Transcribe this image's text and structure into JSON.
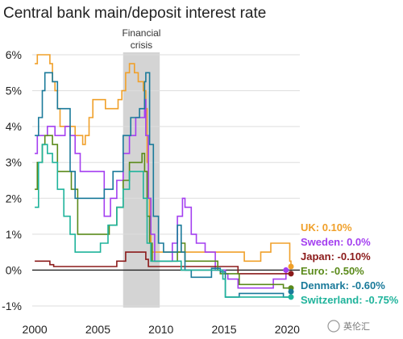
{
  "chart_data": {
    "type": "line",
    "title": "Central bank main/deposit interest rate",
    "xlabel": "",
    "ylabel": "",
    "xlim": [
      1999.8,
      2021.0
    ],
    "ylim": [
      -1.0,
      6.0
    ],
    "x_ticks": [
      2000,
      2005,
      2010,
      2015,
      2020
    ],
    "x_tick_labels": [
      "2000",
      "2005",
      "2010",
      "2015",
      "2020"
    ],
    "y_ticks": [
      -1,
      0,
      1,
      2,
      3,
      4,
      5,
      6
    ],
    "y_tick_labels": [
      "-1%",
      "0%",
      "1%",
      "2%",
      "3%",
      "4%",
      "5%",
      "6%"
    ],
    "grid": "horizontal",
    "shaded_band": {
      "label_lines": [
        "Financial",
        "crisis"
      ],
      "x_start": 2007.0,
      "x_end": 2009.9
    },
    "series": [
      {
        "name": "UK",
        "label": "UK: 0.10%",
        "color": "#f0a02a",
        "x": [
          2000.0,
          2000.2,
          2001.0,
          2001.2,
          2001.4,
          2001.6,
          2001.8,
          2002.0,
          2003.0,
          2003.2,
          2003.8,
          2004.0,
          2004.3,
          2004.6,
          2005.6,
          2006.6,
          2006.9,
          2007.2,
          2007.5,
          2007.9,
          2008.2,
          2008.6,
          2008.8,
          2008.9,
          2009.0,
          2009.1,
          2009.2,
          2016.6,
          2017.9,
          2018.7,
          2020.2,
          2020.3
        ],
        "y": [
          5.75,
          6.0,
          6.0,
          5.75,
          5.25,
          5.0,
          4.5,
          4.0,
          4.0,
          3.75,
          3.5,
          3.75,
          4.25,
          4.75,
          4.5,
          4.75,
          5.0,
          5.5,
          5.75,
          5.5,
          5.25,
          5.0,
          4.5,
          3.0,
          2.0,
          1.5,
          0.5,
          0.25,
          0.5,
          0.75,
          0.25,
          0.1
        ]
      },
      {
        "name": "Sweden",
        "label": "Sweden: 0.0%",
        "color": "#a43ff0",
        "x": [
          2000.0,
          2000.2,
          2000.6,
          2001.0,
          2001.2,
          2001.6,
          2002.0,
          2002.4,
          2002.8,
          2003.2,
          2003.6,
          2005.5,
          2006.0,
          2006.5,
          2007.0,
          2007.5,
          2008.0,
          2008.7,
          2008.8,
          2009.0,
          2009.2,
          2009.5,
          2010.5,
          2010.9,
          2011.3,
          2011.7,
          2011.9,
          2012.4,
          2012.8,
          2013.5,
          2014.3,
          2014.6,
          2015.1,
          2015.3,
          2016.1,
          2018.9,
          2019.9
        ],
        "y": [
          3.25,
          3.75,
          3.75,
          4.0,
          4.0,
          3.75,
          3.75,
          4.0,
          3.75,
          3.25,
          2.75,
          1.5,
          2.0,
          2.5,
          3.25,
          3.75,
          4.25,
          4.75,
          3.75,
          2.0,
          1.0,
          0.25,
          0.25,
          0.75,
          1.5,
          2.0,
          1.75,
          1.0,
          0.75,
          0.5,
          0.0,
          0.0,
          -0.1,
          -0.25,
          -0.5,
          -0.25,
          0.0
        ]
      },
      {
        "name": "Japan",
        "label": "Japan: -0.10%",
        "color": "#8b1a1a",
        "x": [
          2000.0,
          2000.6,
          2001.2,
          2001.5,
          2006.5,
          2007.2,
          2008.8,
          2009.0,
          2016.1,
          2020.3
        ],
        "y": [
          0.25,
          0.25,
          0.15,
          0.1,
          0.25,
          0.5,
          0.3,
          0.1,
          -0.1,
          -0.1
        ]
      },
      {
        "name": "Euro",
        "label": "Euro: -0.50%",
        "color": "#5a8a1a",
        "x": [
          2000.0,
          2000.2,
          2000.6,
          2000.8,
          2001.4,
          2001.8,
          2002.9,
          2003.4,
          2005.9,
          2006.5,
          2007.0,
          2007.5,
          2008.5,
          2008.7,
          2008.9,
          2009.1,
          2009.3,
          2011.3,
          2011.6,
          2011.9,
          2014.5,
          2014.7,
          2016.2,
          2019.7,
          2020.3
        ],
        "y": [
          2.25,
          3.0,
          3.5,
          3.75,
          3.5,
          2.75,
          2.25,
          1.0,
          1.25,
          1.75,
          2.5,
          3.0,
          3.25,
          2.75,
          1.5,
          0.75,
          0.25,
          0.5,
          0.75,
          0.25,
          0.0,
          -0.1,
          -0.4,
          -0.5,
          -0.5
        ]
      },
      {
        "name": "Denmark",
        "label": "Denmark: -0.60%",
        "color": "#1a7a9a",
        "x": [
          2000.0,
          2000.3,
          2000.6,
          2000.8,
          2001.4,
          2001.8,
          2002.8,
          2003.2,
          2005.5,
          2006.2,
          2007.0,
          2007.6,
          2008.3,
          2008.7,
          2008.8,
          2009.1,
          2009.4,
          2009.8,
          2010.2,
          2011.3,
          2011.6,
          2011.9,
          2012.4,
          2014.0,
          2014.7,
          2015.1,
          2015.2,
          2016.2,
          2019.7,
          2020.3
        ],
        "y": [
          3.75,
          4.25,
          5.0,
          5.5,
          5.25,
          4.5,
          2.75,
          2.0,
          2.25,
          2.75,
          3.75,
          4.25,
          4.5,
          5.25,
          5.5,
          3.5,
          1.5,
          0.75,
          0.5,
          1.25,
          0.5,
          0.0,
          -0.2,
          0.05,
          -0.05,
          -0.75,
          -0.75,
          -0.65,
          -0.75,
          -0.6
        ]
      },
      {
        "name": "Switzerland",
        "label": "Switzerland: -0.75%",
        "color": "#1fb39b",
        "x": [
          2000.0,
          2000.3,
          2000.6,
          2001.0,
          2001.4,
          2001.8,
          2002.3,
          2002.8,
          2003.2,
          2004.5,
          2005.2,
          2005.8,
          2006.5,
          2007.0,
          2007.5,
          2008.2,
          2008.6,
          2008.9,
          2009.2,
          2009.5,
          2011.6,
          2011.8,
          2014.9,
          2015.1,
          2020.3
        ],
        "y": [
          1.75,
          3.0,
          3.5,
          3.25,
          3.0,
          2.25,
          1.5,
          1.0,
          0.5,
          0.5,
          0.75,
          1.25,
          1.75,
          2.25,
          2.75,
          2.75,
          2.0,
          0.75,
          0.25,
          0.25,
          0.0,
          0.0,
          -0.25,
          -0.75,
          -0.75
        ]
      }
    ]
  },
  "watermark": "英伦汇"
}
